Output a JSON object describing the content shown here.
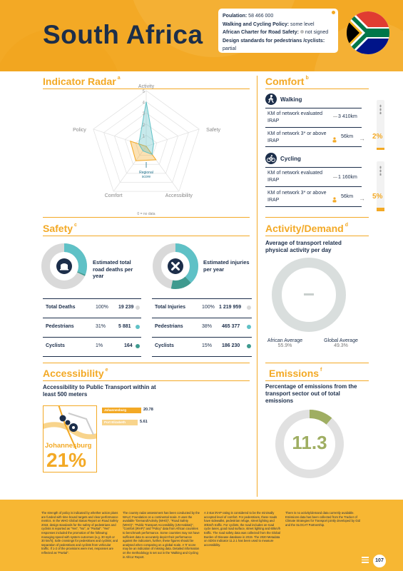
{
  "header": {
    "country": "South Africa",
    "info": [
      {
        "label": "Poulation:",
        "value": "58 466 000"
      },
      {
        "label": "Walking and Cycling Policy:",
        "value": "some level"
      },
      {
        "label": "African Charter for Road Safety:",
        "value": "not signed"
      },
      {
        "label": "Design standards for pedestrians /cyclists:",
        "value": "partial"
      }
    ]
  },
  "radar": {
    "title": "Indicator Radar",
    "sup": "a",
    "axes": [
      "Activity",
      "Safety",
      "Accessibility",
      "Comfort",
      "Policy"
    ],
    "ticks": [
      "1",
      "2",
      "3",
      "4",
      "5"
    ],
    "regional_label": "Regional",
    "regional_label2": "score",
    "no_data_note": "0 = no data"
  },
  "chart_data": {
    "type": "radar",
    "axes": [
      "Activity",
      "Safety",
      "Accessibility",
      "Comfort",
      "Policy"
    ],
    "range": [
      0,
      5
    ],
    "series": [
      {
        "values": [
          0,
          0,
          1.5,
          1.6,
          1.5
        ],
        "color": "#f3a925"
      },
      {
        "values": [
          4,
          0.7,
          0.9,
          0.5,
          0.7
        ],
        "color": "#5fc1c6"
      }
    ]
  },
  "comfort": {
    "title": "Comfort",
    "sup": "b",
    "walking": {
      "label": "Walking",
      "rows": [
        {
          "label": "KM of network evaluated IRAP",
          "value": "3 410km"
        },
        {
          "label": "KM of network 3* or above IRAP",
          "value": "56km"
        }
      ],
      "pct": "2%"
    },
    "cycling": {
      "label": "Cycling",
      "rows": [
        {
          "label": "KM of network evaluated IRAP",
          "value": "1 160km"
        },
        {
          "label": "KM of network 3* or above IRAP",
          "value": "56km"
        }
      ],
      "pct": "5%"
    }
  },
  "safety": {
    "title": "Safety",
    "sup": "c",
    "deaths_label": "Estimated total road deaths per year",
    "injuries_label": "Estimated injuries per year",
    "deaths": [
      {
        "label": "Total Deaths",
        "pct": "100%",
        "value": "19 239",
        "color": "#d9d9d9"
      },
      {
        "label": "Pedestrians",
        "pct": "31%",
        "value": "5 881",
        "color": "#5fc1c6"
      },
      {
        "label": "Cyclists",
        "pct": "1%",
        "value": "164",
        "color": "#3f9a8f"
      }
    ],
    "injuries": [
      {
        "label": "Total Injuries",
        "pct": "100%",
        "value": "1 219 959",
        "color": "#d9d9d9"
      },
      {
        "label": "Pedestrians",
        "pct": "38%",
        "value": "465 377",
        "color": "#5fc1c6"
      },
      {
        "label": "Cyclists",
        "pct": "15%",
        "value": "186 230",
        "color": "#3f9a8f"
      }
    ]
  },
  "activity": {
    "title": "Activity/Demand",
    "sup": "d",
    "subtitle": "Average of transport related physical activity per day",
    "african_label": "African Average",
    "african_value": "55.9%",
    "global_label": "Global Average",
    "global_value": "49.3%"
  },
  "accessibility": {
    "title": "Accessibility",
    "sup": "e",
    "subtitle": "Accessibility to Public Transport within at least 500 meters",
    "bar1_label": "Johannesburg",
    "bar1_value": "20.78",
    "bar2_label": "Port Elizabeth",
    "bar2_value": "5.61",
    "city": "Johannesburg",
    "city_pct": "21%"
  },
  "emissions": {
    "title": "Emissions",
    "sup": "f",
    "subtitle": "Percentage of emissions from the transport sector out of total emissions",
    "value": "11.3"
  },
  "footer": {
    "col1": "The strength of policy is indicated by whether action plans are funded with time bound targets and clear performance metrics. In the WHO Global Status Report on Road Safety 2018, design standards for the safety of pedestrians and cyclists is reported as \"Yes\", \"No\", or \"Partial\". \"Yes\" responses included the promotion of the following: managing speed with system outcomes (e.g. 30 mph or 30 km/h); Safe crossings for pedestrians and cyclists; and separation of pedestrians and cyclists from vehicular traffic. If 1-2 of the provisions were met, responses are reflected as \"Partial\".",
    "col2": "The country radar assessment has been conducted by the WALC Foundation on a continental scale. It uses the available \"Demand/Activity (WHO)\", \"Road Safety (WHO)\", \"Public Transport Accessibility (UN-Habitat)\", \"Comfort (iRAP)\" and \"Policy\" data from African countries to benchmark performance. Some countries may not have sufficient data to accurately depict their performance against the indicators, further, these figures should be analysed when comparing on a global scale. A '0' score may be an indication of missing data. Detailed information on the methodology is set out in the 'Walking and Cycling in Africa' Report.",
    "col3": "A 3 star iRAP rating is considered to be the minimally accepted level of comfort. For pedestrians, these roads have sidewalks, pedestrian refuge, street lighting and 30km/h traffic. For cyclists, the road includes on-road cycle lanes, good road surface, street lighting and 60km/h traffic. The road safety data was collected from the Global Burden of Disease database in 2019. The 2020 Metadata on SDGs Indicator 11.2.1 has been used to measure accessibility.",
    "col4": "There is no activity/demand data currently available. Emissions data has been collected from the Tracker of Climate Strategies for Transport jointly developed by GIZ and the SLOCAT Partnership.",
    "page": "107"
  }
}
